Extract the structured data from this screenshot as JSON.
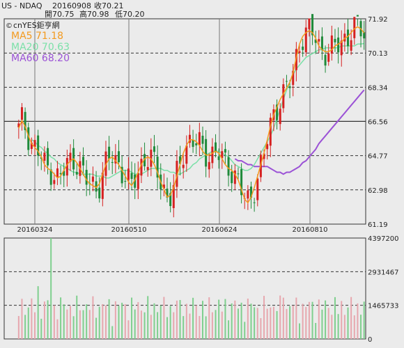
{
  "header": {
    "symbol": "US - NDAQ",
    "date": "20160908",
    "close_text": "收70.21",
    "open_text": "開70.75",
    "high_text": "高70.98",
    "low_text": "低70.20"
  },
  "legend": {
    "brand": "cnYES鉅亨網",
    "ma5_text": "MA5 71.18",
    "ma20_text": "MA20 70.63",
    "ma60_text": "MA60 68.20"
  },
  "colors": {
    "background": "#ebebeb",
    "up": "#d62020",
    "down": "#1f8a3a",
    "ma5": "#f39a1e",
    "ma20": "#7be0a8",
    "ma60": "#9b52d6",
    "volume_up": "#e7a7ae",
    "volume_down": "#7fcf8e"
  },
  "chart_data": [
    {
      "type": "candlestick",
      "title": "",
      "ylim": [
        61.19,
        71.92
      ],
      "y_ticks": [
        71.92,
        70.13,
        68.34,
        66.56,
        64.77,
        62.98,
        61.19
      ],
      "x_labels": [
        "20160324",
        "20160510",
        "20160624",
        "20160810"
      ],
      "series": [
        {
          "name": "MA5",
          "values": [
            66.2,
            66.6,
            66.3,
            65.8,
            65.4,
            65.2,
            65.0,
            64.7,
            64.3,
            64.1,
            64.0,
            63.8,
            63.6,
            63.7,
            64.0,
            64.3,
            64.5,
            64.6,
            64.4,
            64.1,
            63.8,
            63.5,
            63.3,
            63.2,
            63.1,
            63.3,
            63.8,
            64.3,
            64.6,
            64.7,
            64.5,
            64.3,
            64.0,
            63.7,
            63.4,
            63.2,
            63.5,
            63.9,
            64.3,
            64.6,
            64.7,
            64.6,
            64.3,
            63.9,
            63.4,
            63.0,
            62.6,
            62.7,
            63.1,
            63.7,
            64.3,
            64.9,
            65.3,
            65.6,
            65.6,
            65.5,
            65.3,
            65.0,
            64.8,
            64.8,
            64.9,
            65.0,
            64.9,
            64.6,
            64.3,
            64.1,
            64.0,
            63.8,
            63.5,
            63.0,
            62.5,
            62.3,
            62.6,
            63.1,
            63.7,
            64.3,
            64.9,
            65.6,
            66.3,
            66.9,
            67.3,
            67.7,
            68.0,
            68.3,
            68.6,
            69.1,
            69.9,
            70.6,
            71.0,
            71.2,
            71.3,
            71.2,
            70.9,
            70.5,
            70.3,
            70.2,
            70.2,
            70.3,
            70.5,
            70.6,
            70.7,
            70.9,
            71.0,
            71.2,
            71.4,
            71.5,
            71.4,
            71.18
          ]
        },
        {
          "name": "MA20",
          "values": [
            65.6,
            65.5,
            65.3,
            65.2,
            65.0,
            64.9,
            64.7,
            64.6,
            64.4,
            64.3,
            64.2,
            64.1,
            64.0,
            63.9,
            63.9,
            63.8,
            63.8,
            63.8,
            63.8,
            63.8,
            63.7,
            63.7,
            63.7,
            63.6,
            63.6,
            63.7,
            63.8,
            63.9,
            64.0,
            64.0,
            64.0,
            63.9,
            63.8,
            63.8,
            63.8,
            63.9,
            64.0,
            64.1,
            64.1,
            64.1,
            64.1,
            64.0,
            64.0,
            63.9,
            63.9,
            63.8,
            63.8,
            63.9,
            64.0,
            64.1,
            64.3,
            64.4,
            64.6,
            64.7,
            64.8,
            64.9,
            65.0,
            65.0,
            65.0,
            64.9,
            64.8,
            64.7,
            64.5,
            64.3,
            64.2,
            64.1,
            64.0,
            64.0,
            64.1,
            64.3,
            64.6,
            64.9,
            65.2,
            65.5,
            65.8,
            66.2,
            66.7,
            67.2,
            67.7,
            68.2,
            68.6,
            69.0,
            69.3,
            69.5,
            69.7,
            69.9,
            70.0,
            70.1,
            70.2,
            70.3,
            70.3,
            70.4,
            70.4,
            70.4,
            70.4,
            70.4,
            70.5,
            70.5,
            70.5,
            70.5,
            70.5,
            70.6,
            70.6,
            70.63
          ]
        },
        {
          "name": "MA60",
          "values": [
            64.6,
            64.5,
            64.5,
            64.4,
            64.3,
            64.3,
            64.2,
            64.2,
            64.2,
            64.2,
            64.2,
            64.1,
            64.0,
            63.9,
            63.9,
            63.8,
            63.9,
            63.9,
            64.0,
            64.1,
            64.2,
            64.4,
            64.5,
            64.7,
            64.9,
            65.1,
            65.4,
            65.6,
            65.8,
            66.0,
            66.2,
            66.4,
            66.6,
            66.8,
            67.0,
            67.2,
            67.4,
            67.6,
            67.8,
            68.0,
            68.2
          ]
        }
      ]
    },
    {
      "type": "bar",
      "title": "",
      "ylim": [
        0,
        4397200
      ],
      "y_ticks": [
        4397200,
        2931467,
        1465733,
        0
      ]
    }
  ]
}
